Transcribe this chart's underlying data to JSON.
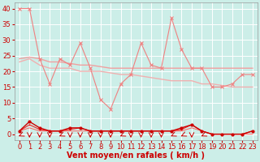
{
  "xlabel": "Vent moyen/en rafales ( km/h )",
  "bg_color": "#cceee8",
  "grid_color": "#ffffff",
  "xlim": [
    -0.5,
    23.5
  ],
  "ylim": [
    -2,
    42
  ],
  "yticks": [
    0,
    5,
    10,
    15,
    20,
    25,
    30,
    35,
    40
  ],
  "xticks": [
    0,
    1,
    2,
    3,
    4,
    5,
    6,
    7,
    8,
    9,
    10,
    11,
    12,
    13,
    14,
    15,
    16,
    17,
    18,
    19,
    20,
    21,
    22,
    23
  ],
  "rafales_x": [
    0,
    1,
    2,
    3,
    4,
    5,
    6,
    7,
    8,
    9,
    10,
    11,
    12,
    13,
    14,
    15,
    16,
    17,
    18,
    19,
    20,
    21,
    22,
    23
  ],
  "rafales_y": [
    40,
    40,
    24,
    16,
    24,
    22,
    29,
    21,
    11,
    8,
    16,
    19,
    29,
    22,
    21,
    37,
    27,
    21,
    21,
    15,
    15,
    16,
    19,
    19
  ],
  "rafales_color": "#f08080",
  "trend1_x": [
    0,
    1,
    2,
    3,
    4,
    5,
    6,
    7,
    8,
    9,
    10,
    11,
    12,
    13,
    14,
    15,
    16,
    17,
    18,
    19,
    20,
    21,
    22,
    23
  ],
  "trend1_y": [
    24,
    24.5,
    24,
    23,
    23,
    22.5,
    22,
    22,
    21.5,
    21,
    21,
    21,
    21,
    21,
    21,
    21,
    21,
    21,
    21,
    21,
    21,
    21,
    21,
    21
  ],
  "trend1_color": "#f0a0a0",
  "trend2_x": [
    0,
    1,
    2,
    3,
    4,
    5,
    6,
    7,
    8,
    9,
    10,
    11,
    12,
    13,
    14,
    15,
    16,
    17,
    18,
    19,
    20,
    21,
    22,
    23
  ],
  "trend2_y": [
    23,
    24,
    22,
    21,
    21,
    21,
    20,
    20,
    20,
    19.5,
    19,
    19,
    18.5,
    18,
    17.5,
    17,
    17,
    17,
    16,
    16,
    15.5,
    15,
    15,
    15
  ],
  "trend2_color": "#f0b0b0",
  "moyen_x": [
    0,
    1,
    2,
    3,
    4,
    5,
    6,
    7,
    8,
    9,
    10,
    11,
    12,
    13,
    14,
    15,
    16,
    17,
    18,
    19,
    20,
    21,
    22,
    23
  ],
  "moyen_y": [
    1,
    4,
    2,
    1,
    1,
    2,
    2,
    1,
    1,
    1,
    1,
    1,
    1,
    1,
    1,
    1,
    2,
    3,
    1,
    0,
    0,
    0,
    0,
    1
  ],
  "moyen_color": "#cc0000",
  "moyen2_x": [
    0,
    1,
    2,
    3,
    4,
    5,
    6,
    7,
    8,
    9,
    10,
    11,
    12,
    13,
    14,
    15,
    16,
    17,
    18,
    19,
    20,
    21,
    22,
    23
  ],
  "moyen2_y": [
    1,
    3,
    1.5,
    1,
    1,
    1.5,
    2,
    1,
    1,
    1,
    1,
    1,
    1,
    1,
    1,
    1,
    1.5,
    3,
    1,
    0,
    0,
    0,
    0,
    1
  ],
  "moyen2_color": "#ee2222",
  "moyen3_x": [
    0,
    1,
    2,
    3,
    4,
    5,
    6,
    7,
    8,
    9,
    10,
    11,
    12,
    13,
    14,
    15,
    16,
    17,
    18,
    19,
    20,
    21,
    22,
    23
  ],
  "moyen3_y": [
    1,
    2,
    1,
    1,
    1,
    1,
    1,
    1,
    1,
    1,
    1,
    1,
    1,
    1,
    1,
    1,
    1,
    2,
    1,
    0,
    0,
    0,
    0,
    0
  ],
  "moyen3_color": "#ff6060",
  "down_arrows": [
    1,
    2,
    3,
    5,
    6,
    7,
    8,
    9,
    11,
    12,
    13,
    14,
    17
  ],
  "left_arrows": [
    0,
    4,
    10,
    15,
    16,
    18
  ],
  "arrow_color": "#cc0000",
  "xlabel_color": "#cc0000",
  "xlabel_fontsize": 7,
  "tick_fontsize": 6,
  "tick_color": "#cc0000"
}
